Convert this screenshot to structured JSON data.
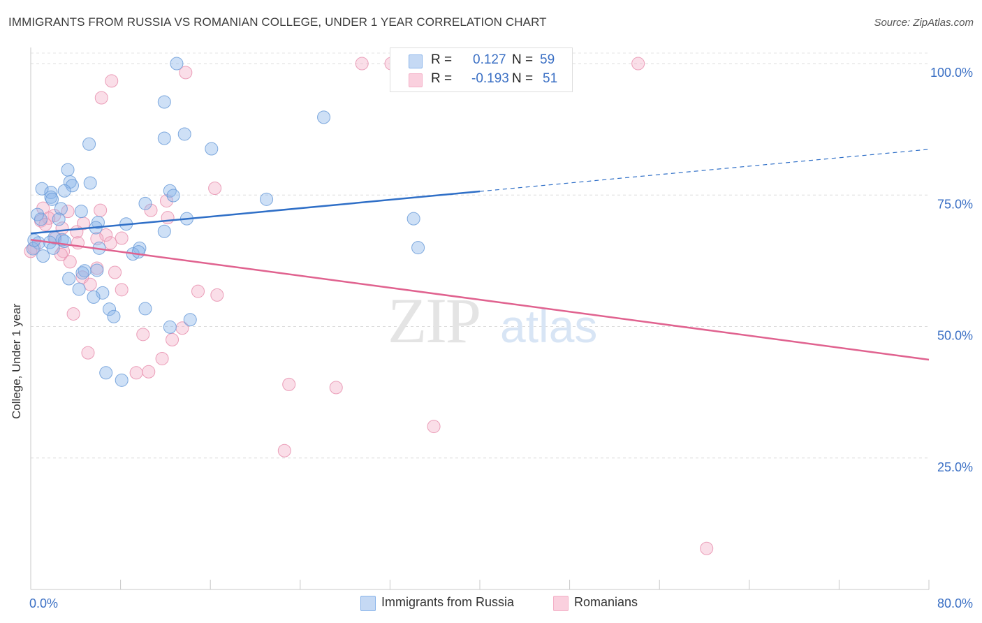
{
  "chart_data": {
    "type": "scatter",
    "title": "IMMIGRANTS FROM RUSSIA VS ROMANIAN COLLEGE, UNDER 1 YEAR CORRELATION CHART",
    "source": "Source: ZipAtlas.com",
    "ylabel": "College, Under 1 year",
    "xlabel": "",
    "xlim": [
      0,
      80
    ],
    "ylim": [
      0,
      102
    ],
    "x_tick_labels": [
      "0.0%",
      "80.0%"
    ],
    "y_tick_labels": [
      {
        "value": 100,
        "label": "100.0%"
      },
      {
        "value": 75,
        "label": "75.0%"
      },
      {
        "value": 50,
        "label": "50.0%"
      },
      {
        "value": 25,
        "label": "25.0%"
      }
    ],
    "watermark": {
      "zip": "ZIP",
      "atlas": "atlas"
    },
    "legend": {
      "r_label": "R =",
      "n_label": "N ="
    },
    "series": [
      {
        "name": "Immigrants from Russia",
        "color": "#8ab4ea",
        "stroke": "#6a9bd8",
        "line_color": "#2f6fc7",
        "r": "0.127",
        "n": "59",
        "trend": {
          "x0": 0,
          "y0": 67.7,
          "x1": 40,
          "y1": 75.7,
          "dash_x1": 80,
          "dash_y1": 83.7
        },
        "points": [
          [
            13.0,
            100.0
          ],
          [
            11.9,
            92.7
          ],
          [
            26.1,
            89.8
          ],
          [
            5.2,
            84.7
          ],
          [
            11.9,
            85.8
          ],
          [
            13.7,
            86.6
          ],
          [
            16.1,
            83.8
          ],
          [
            3.3,
            79.8
          ],
          [
            3.5,
            77.5
          ],
          [
            5.3,
            77.3
          ],
          [
            3.7,
            76.8
          ],
          [
            1.0,
            76.2
          ],
          [
            3.0,
            75.8
          ],
          [
            1.8,
            75.5
          ],
          [
            12.4,
            75.8
          ],
          [
            1.8,
            74.6
          ],
          [
            1.9,
            74.2
          ],
          [
            12.7,
            74.9
          ],
          [
            21.0,
            74.2
          ],
          [
            10.2,
            73.4
          ],
          [
            2.7,
            72.4
          ],
          [
            4.5,
            71.9
          ],
          [
            0.6,
            71.3
          ],
          [
            0.9,
            70.4
          ],
          [
            13.9,
            70.5
          ],
          [
            2.5,
            70.4
          ],
          [
            6.0,
            69.8
          ],
          [
            8.5,
            69.5
          ],
          [
            5.8,
            68.8
          ],
          [
            11.9,
            68.1
          ],
          [
            34.1,
            70.5
          ],
          [
            2.1,
            66.9
          ],
          [
            2.8,
            66.5
          ],
          [
            3.0,
            66.2
          ],
          [
            1.7,
            66.0
          ],
          [
            0.7,
            65.9
          ],
          [
            6.1,
            64.9
          ],
          [
            9.7,
            64.9
          ],
          [
            2.0,
            64.9
          ],
          [
            9.1,
            63.8
          ],
          [
            9.6,
            64.2
          ],
          [
            34.5,
            65.0
          ],
          [
            4.8,
            60.6
          ],
          [
            5.9,
            60.7
          ],
          [
            4.6,
            60.2
          ],
          [
            3.4,
            59.1
          ],
          [
            4.3,
            57.1
          ],
          [
            6.4,
            56.4
          ],
          [
            5.6,
            55.6
          ],
          [
            7.0,
            53.3
          ],
          [
            10.2,
            53.4
          ],
          [
            7.4,
            51.9
          ],
          [
            14.2,
            51.3
          ],
          [
            12.4,
            49.9
          ],
          [
            6.7,
            41.2
          ],
          [
            8.1,
            39.8
          ],
          [
            0.2,
            64.8
          ],
          [
            1.1,
            63.4
          ],
          [
            0.3,
            66.4
          ]
        ]
      },
      {
        "name": "Romanians",
        "color": "#f4b0c7",
        "stroke": "#e88fae",
        "line_color": "#e0628f",
        "r": "-0.193",
        "n": "51",
        "trend": {
          "x0": 0,
          "y0": 66.5,
          "x1": 80,
          "y1": 43.7
        },
        "points": [
          [
            29.5,
            100.0
          ],
          [
            32.1,
            100.0
          ],
          [
            54.1,
            100.0
          ],
          [
            13.8,
            98.3
          ],
          [
            7.2,
            96.7
          ],
          [
            6.3,
            93.5
          ],
          [
            16.4,
            76.3
          ],
          [
            12.1,
            73.9
          ],
          [
            1.1,
            72.5
          ],
          [
            6.2,
            72.1
          ],
          [
            10.7,
            72.1
          ],
          [
            3.3,
            71.9
          ],
          [
            2.1,
            71.1
          ],
          [
            12.2,
            70.7
          ],
          [
            1.6,
            70.6
          ],
          [
            4.7,
            69.6
          ],
          [
            2.8,
            68.7
          ],
          [
            4.1,
            68.0
          ],
          [
            6.7,
            67.4
          ],
          [
            8.1,
            66.8
          ],
          [
            2.2,
            66.8
          ],
          [
            5.9,
            66.7
          ],
          [
            7.1,
            65.9
          ],
          [
            4.2,
            65.9
          ],
          [
            0.3,
            65.0
          ],
          [
            0.0,
            64.3
          ],
          [
            2.9,
            64.3
          ],
          [
            2.7,
            63.7
          ],
          [
            3.5,
            62.3
          ],
          [
            5.9,
            61.1
          ],
          [
            7.5,
            60.3
          ],
          [
            4.6,
            59.4
          ],
          [
            5.3,
            58.0
          ],
          [
            8.1,
            57.0
          ],
          [
            14.9,
            56.7
          ],
          [
            16.6,
            56.0
          ],
          [
            3.8,
            52.4
          ],
          [
            13.5,
            49.7
          ],
          [
            10.0,
            48.5
          ],
          [
            12.6,
            47.5
          ],
          [
            5.1,
            45.0
          ],
          [
            11.7,
            43.9
          ],
          [
            9.4,
            41.2
          ],
          [
            10.5,
            41.4
          ],
          [
            23.0,
            39.0
          ],
          [
            27.2,
            38.4
          ],
          [
            35.9,
            31.0
          ],
          [
            22.6,
            26.4
          ],
          [
            60.2,
            7.8
          ],
          [
            0.9,
            70.1
          ],
          [
            1.3,
            69.4
          ]
        ]
      }
    ]
  }
}
